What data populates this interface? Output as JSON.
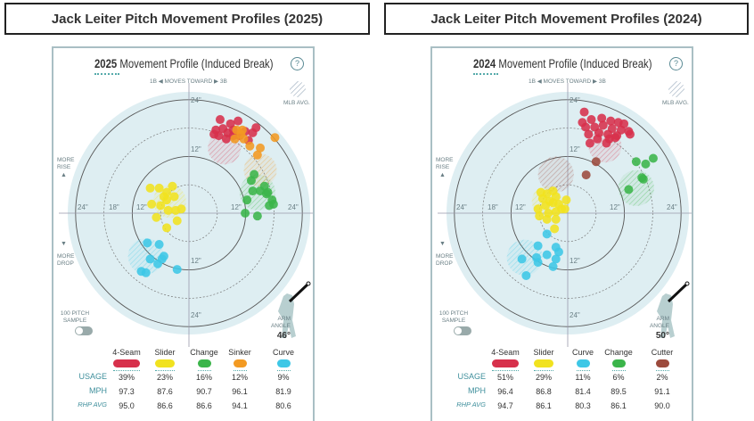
{
  "titles": [
    "Jack Leiter Pitch Movement Profiles (2025)",
    "Jack Leiter Pitch Movement Profiles (2024)"
  ],
  "common": {
    "title_rest": "Movement Profile (Induced Break)",
    "help": "?",
    "moves_toward": "1B ◀ MOVES TOWARD ▶ 3B",
    "mlb_avg": "MLB AVG.",
    "more_rise": "MORE RISE",
    "more_drop": "MORE DROP",
    "up_arrow": "▲",
    "down_arrow": "▼",
    "sample": "100 PITCH SAMPLE",
    "arm_angle": "ARM ANGLE",
    "row_labels": [
      "USAGE",
      "MPH",
      "RHP AVG"
    ],
    "ring_labels": {
      "left": [
        "24\"",
        "18\"",
        "12\""
      ],
      "right": [
        "12\"",
        "24\""
      ],
      "top": [
        "24\"",
        "12\""
      ],
      "bottom": [
        "12\"",
        "24\""
      ]
    }
  },
  "chart_data": [
    {
      "type": "scatter",
      "year": "2025",
      "arm_angle": "46°",
      "xlabel": "1B ◀ MOVES TOWARD ▶ 3B",
      "xlim": [
        -24,
        24
      ],
      "ylim": [
        -24,
        24
      ],
      "pitches": [
        {
          "name": "4-Seam",
          "color": "#d7304b",
          "usage": "39%",
          "mph": "97.3",
          "rhp_avg": "95.0",
          "mlb_avg": [
            7.5,
            13.8,
            3.5
          ],
          "points": [
            [
              6.6,
              19.8
            ],
            [
              8.8,
              18.9
            ],
            [
              10.4,
              19.5
            ],
            [
              14.2,
              18.1
            ],
            [
              5.7,
              17.6
            ],
            [
              7.2,
              17.9
            ],
            [
              8.2,
              17.0
            ],
            [
              9.4,
              17.6
            ],
            [
              11.9,
              17.3
            ],
            [
              12.6,
              15.4
            ],
            [
              6.3,
              16.4
            ],
            [
              10.7,
              16.4
            ],
            [
              5.3,
              16.7
            ],
            [
              7.9,
              15.7
            ],
            [
              13.5,
              17.0
            ],
            [
              9.4,
              16.4
            ]
          ]
        },
        {
          "name": "Slider",
          "color": "#f1e21f",
          "usage": "23%",
          "mph": "87.6",
          "rhp_avg": "86.6",
          "mlb_avg": [
            -4.1,
            2.5,
            3.5
          ],
          "points": [
            [
              -8.2,
              5.3
            ],
            [
              -6.3,
              5.3
            ],
            [
              -3.5,
              5.7
            ],
            [
              -4.7,
              4.4
            ],
            [
              -3.1,
              3.5
            ],
            [
              -7.9,
              1.9
            ],
            [
              -6.0,
              1.6
            ],
            [
              -4.7,
              2.8
            ],
            [
              -4.4,
              0.6
            ],
            [
              -2.8,
              0.6
            ],
            [
              -1.6,
              0.9
            ],
            [
              -6.9,
              -0.9
            ],
            [
              -2.5,
              -1.6
            ],
            [
              -4.7,
              -3.1
            ],
            [
              -5.3,
              3.5
            ]
          ]
        },
        {
          "name": "Change",
          "color": "#3bb54a",
          "usage": "16%",
          "mph": "90.7",
          "rhp_avg": "86.6",
          "mlb_avg": [
            14.5,
            4.4,
            3.8
          ],
          "points": [
            [
              13.8,
              8.2
            ],
            [
              13.2,
              6.9
            ],
            [
              13.5,
              4.7
            ],
            [
              15.1,
              4.7
            ],
            [
              16.0,
              5.7
            ],
            [
              16.7,
              4.4
            ],
            [
              17.6,
              2.8
            ],
            [
              17.9,
              1.9
            ],
            [
              17.0,
              1.6
            ],
            [
              12.3,
              2.8
            ],
            [
              11.9,
              0
            ],
            [
              14.5,
              -0.6
            ],
            [
              16.4,
              4.1
            ]
          ]
        },
        {
          "name": "Sinker",
          "color": "#f39a22",
          "usage": "12%",
          "mph": "96.1",
          "rhp_avg": "94.1",
          "mlb_avg": [
            15.1,
            9.1,
            3.5
          ],
          "points": [
            [
              10.1,
              17.6
            ],
            [
              11.3,
              17.6
            ],
            [
              9.7,
              15.7
            ],
            [
              11.6,
              15.7
            ],
            [
              18.2,
              16.0
            ],
            [
              12.9,
              14.2
            ],
            [
              15.1,
              13.8
            ],
            [
              14.5,
              12.3
            ],
            [
              11.0,
              16.7
            ]
          ]
        },
        {
          "name": "Curve",
          "color": "#3ec7e6",
          "usage": "9%",
          "mph": "81.9",
          "rhp_avg": "80.6",
          "mlb_avg": [
            -9.1,
            -9.1,
            3.8
          ],
          "points": [
            [
              -8.8,
              -6.3
            ],
            [
              -6.3,
              -6.6
            ],
            [
              -8.2,
              -9.7
            ],
            [
              -6.6,
              -10.7
            ],
            [
              -5.3,
              -9.1
            ],
            [
              -5.7,
              -9.7
            ],
            [
              -10.1,
              -12.3
            ],
            [
              -9.1,
              -12.6
            ],
            [
              -2.5,
              -11.9
            ]
          ]
        }
      ]
    },
    {
      "type": "scatter",
      "year": "2024",
      "arm_angle": "50°",
      "xlabel": "1B ◀ MOVES TOWARD ▶ 3B",
      "xlim": [
        -24,
        24
      ],
      "ylim": [
        -24,
        24
      ],
      "pitches": [
        {
          "name": "4-Seam",
          "color": "#d7304b",
          "usage": "51%",
          "mph": "96.4",
          "rhp_avg": "94.7",
          "mlb_avg": [
            7.9,
            14.2,
            3.5
          ],
          "points": [
            [
              3.5,
              21.4
            ],
            [
              5.0,
              19.8
            ],
            [
              7.2,
              20.1
            ],
            [
              9.1,
              19.5
            ],
            [
              10.7,
              19.2
            ],
            [
              11.9,
              18.9
            ],
            [
              12.9,
              17.3
            ],
            [
              13.2,
              16.7
            ],
            [
              3.8,
              18.2
            ],
            [
              5.7,
              18.2
            ],
            [
              7.5,
              18.6
            ],
            [
              9.4,
              17.9
            ],
            [
              11.3,
              17.6
            ],
            [
              4.4,
              16.7
            ],
            [
              6.6,
              17.0
            ],
            [
              8.5,
              16.7
            ],
            [
              10.4,
              16.4
            ],
            [
              6.3,
              15.7
            ],
            [
              8.8,
              15.7
            ],
            [
              4.7,
              14.8
            ],
            [
              8.2,
              14.8
            ],
            [
              10.1,
              16.0
            ],
            [
              3.1,
              19.2
            ]
          ]
        },
        {
          "name": "Slider",
          "color": "#f1e21f",
          "usage": "29%",
          "mph": "86.8",
          "rhp_avg": "86.1",
          "mlb_avg": [
            -4.4,
            2.5,
            3.2
          ],
          "points": [
            [
              -5.7,
              4.4
            ],
            [
              -4.4,
              4.1
            ],
            [
              -3.1,
              4.7
            ],
            [
              -2.5,
              3.5
            ],
            [
              -0.3,
              2.8
            ],
            [
              -5.3,
              3.1
            ],
            [
              -3.8,
              2.5
            ],
            [
              -1.9,
              1.9
            ],
            [
              -6.3,
              0.9
            ],
            [
              -4.7,
              1.6
            ],
            [
              -3.1,
              2.2
            ],
            [
              -1.3,
              0.9
            ],
            [
              -6.0,
              -0.6
            ],
            [
              -4.1,
              0
            ],
            [
              -2.5,
              0.3
            ],
            [
              -4.4,
              -1.3
            ],
            [
              -2.5,
              -1.3
            ],
            [
              -2.8,
              -3.3
            ],
            [
              -0.6,
              0.9
            ]
          ]
        },
        {
          "name": "Curve",
          "color": "#3ec7e6",
          "usage": "11%",
          "mph": "81.4",
          "rhp_avg": "80.3",
          "mlb_avg": [
            -9.1,
            -9.4,
            3.8
          ],
          "points": [
            [
              -4.4,
              -4.4
            ],
            [
              -6.3,
              -6.9
            ],
            [
              -2.5,
              -7.2
            ],
            [
              -1.9,
              -8.2
            ],
            [
              -6.6,
              -9.4
            ],
            [
              -4.4,
              -8.8
            ],
            [
              -6.3,
              -10.4
            ],
            [
              -2.5,
              -9.7
            ],
            [
              -9.7,
              -9.7
            ],
            [
              -3.1,
              -11.3
            ],
            [
              -8.8,
              -13.2
            ]
          ]
        },
        {
          "name": "Change",
          "color": "#3bb54a",
          "usage": "6%",
          "mph": "89.5",
          "rhp_avg": "86.1",
          "mlb_avg": [
            14.5,
            5.3,
            3.8
          ],
          "points": [
            [
              14.5,
              10.9
            ],
            [
              16.5,
              10.4
            ],
            [
              18.1,
              11.6
            ],
            [
              15.7,
              7.5
            ],
            [
              16.0,
              7.2
            ],
            [
              12.9,
              5.0
            ]
          ]
        },
        {
          "name": "Cutter",
          "color": "#9c4a3c",
          "usage": "2%",
          "mph": "91.1",
          "rhp_avg": "90.0",
          "mlb_avg": [
            -2.5,
            8.2,
            3.8
          ],
          "points": [
            [
              6.0,
              10.9
            ],
            [
              3.9,
              8.1
            ]
          ]
        }
      ]
    }
  ]
}
